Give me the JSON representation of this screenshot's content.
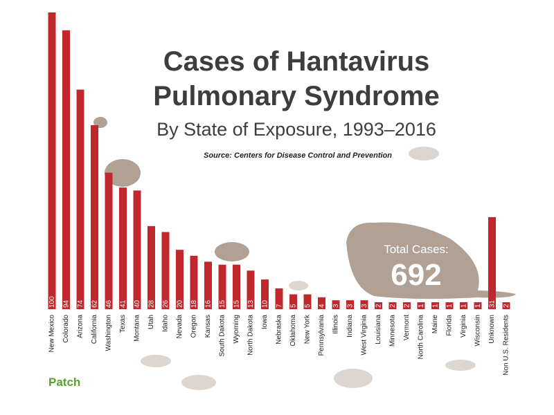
{
  "chart_data": {
    "type": "bar",
    "title": [
      "Cases of Hantavirus",
      "Pulmonary Syndrome"
    ],
    "subtitle": "By State of Exposure, 1993–2016",
    "source": "Source: Centers for Disease Control and Prevention",
    "total_label": "Total Cases:",
    "total": 692,
    "categories": [
      "New Mexico",
      "Colorado",
      "Arizona",
      "California",
      "Washington",
      "Texas",
      "Montana",
      "Utah",
      "Idaho",
      "Nevada",
      "Oregon",
      "Kansas",
      "South Dakota",
      "Wyoming",
      "North Dakota",
      "Iowa",
      "Nebraska",
      "Oklahoma",
      "New York",
      "Pennsylvania",
      "Illinois",
      "Indiana",
      "West Virginia",
      "Louisiana",
      "Minnesota",
      "Vermont",
      "North Carolina",
      "Maine",
      "Florida",
      "Virginia",
      "Wisconsin",
      "Unknown",
      "Non U.S. Residents"
    ],
    "values": [
      100,
      94,
      74,
      62,
      46,
      41,
      40,
      28,
      26,
      20,
      18,
      16,
      15,
      15,
      13,
      10,
      7,
      5,
      5,
      4,
      3,
      3,
      3,
      2,
      2,
      2,
      1,
      1,
      1,
      1,
      1,
      31,
      2
    ],
    "color": "#c0282d",
    "ylim": [
      0,
      100
    ]
  },
  "logo": "Patch"
}
